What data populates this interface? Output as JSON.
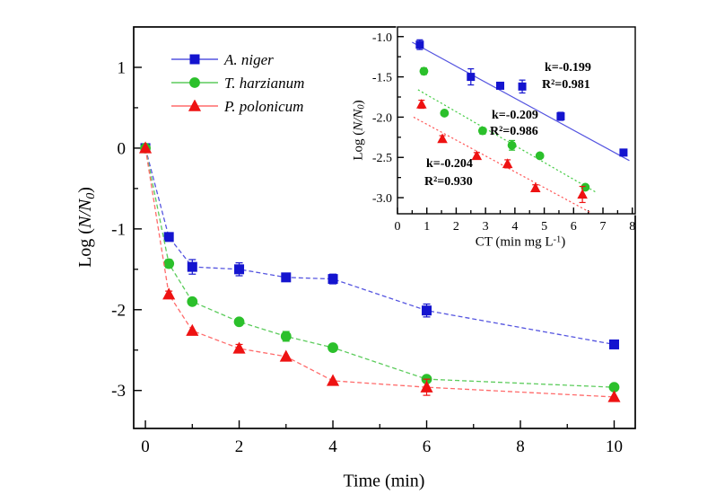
{
  "page": {
    "background": "#ffffff"
  },
  "labels": {
    "main_ylabel": {
      "pre": "Log (",
      "var": "N/N",
      "sub": "0",
      "post": ")"
    },
    "main_xlabel": "Time (min)",
    "inset_ylabel": {
      "pre": "Log (",
      "var": "N/N",
      "sub": "0",
      "post": ")"
    },
    "inset_xlabel": {
      "pre": "CT (min mg L",
      "sup": "-1",
      "post": ")"
    }
  },
  "chart_data": [
    {
      "type": "line",
      "title": "",
      "xlabel": "Time (min)",
      "ylabel": "Log (N/N0)",
      "xlim": [
        -0.25,
        10.45
      ],
      "ylim": [
        -3.47,
        1.5
      ],
      "grid": false,
      "legend_position": "top-left-inside",
      "x_tick_values": [
        0,
        2,
        4,
        6,
        8,
        10
      ],
      "x_tick_labels": [
        "0",
        "2",
        "4",
        "6",
        "8",
        "10"
      ],
      "x_minor_ticks": [
        1,
        3,
        5,
        7,
        9
      ],
      "y_tick_values": [
        1,
        0,
        -1,
        -2,
        -3
      ],
      "y_tick_labels": [
        "1",
        "0",
        "-1",
        "-2",
        "-3"
      ],
      "y_minor_ticks": [
        0.5,
        -0.5,
        -1.5,
        -2.5
      ],
      "series": [
        {
          "name": "A. niger",
          "marker": "square",
          "color": "#1414cf",
          "line_color": "#5555e0",
          "line_style": "dashed",
          "x": [
            0,
            0.5,
            1,
            2,
            3,
            4,
            6,
            10
          ],
          "y": [
            0,
            -1.1,
            -1.47,
            -1.5,
            -1.6,
            -1.62,
            -2.01,
            -2.43
          ],
          "yerr": [
            0,
            0.05,
            0.09,
            0.08,
            0,
            0.06,
            0.08,
            0
          ]
        },
        {
          "name": "T. harzianum",
          "marker": "circle",
          "color": "#2bc02b",
          "line_color": "#5ccc5c",
          "line_style": "dashed",
          "x": [
            0,
            0.5,
            1,
            2,
            3,
            4,
            6,
            10
          ],
          "y": [
            0,
            -1.43,
            -1.9,
            -2.15,
            -2.33,
            -2.47,
            -2.86,
            -2.96
          ],
          "yerr": [
            0,
            0.05,
            0.04,
            0,
            0.06,
            0,
            0.04,
            0
          ]
        },
        {
          "name": "P. polonicum",
          "marker": "triangle",
          "color": "#ee1212",
          "line_color": "#ff6b6b",
          "line_style": "dashed",
          "x": [
            0,
            0.5,
            1,
            2,
            3,
            4,
            6,
            10
          ],
          "y": [
            0,
            -1.81,
            -2.26,
            -2.48,
            -2.58,
            -2.88,
            -2.96,
            -3.08
          ],
          "yerr": [
            0,
            0.04,
            0,
            0.05,
            0,
            0,
            0.1,
            0
          ]
        }
      ]
    },
    {
      "type": "scatter",
      "title": "",
      "xlabel": "CT (min mg L-1)",
      "ylabel": "Log (N/N0)",
      "xlim": [
        0,
        8.1
      ],
      "ylim": [
        -3.2,
        -0.88
      ],
      "grid": false,
      "x_tick_values": [
        0,
        1,
        2,
        3,
        4,
        5,
        6,
        7,
        8
      ],
      "x_tick_labels": [
        "0",
        "1",
        "2",
        "3",
        "4",
        "5",
        "6",
        "7",
        "8"
      ],
      "x_minor_ticks": [
        0.5,
        1.5,
        2.5,
        3.5,
        4.5,
        5.5,
        6.5,
        7.5
      ],
      "y_tick_values": [
        -1.0,
        -1.5,
        -2.0,
        -2.5,
        -3.0
      ],
      "y_tick_labels": [
        "-1.0",
        "-1.5",
        "-2.0",
        "-2.5",
        "-3.0"
      ],
      "y_minor_ticks": [
        -1.25,
        -1.75,
        -2.25,
        -2.75
      ],
      "series": [
        {
          "name": "A. niger",
          "marker": "square",
          "color": "#1414cf",
          "x": [
            0.76,
            2.5,
            3.5,
            4.25,
            5.56,
            7.7
          ],
          "y": [
            -1.1,
            -1.5,
            -1.61,
            -1.62,
            -1.99,
            -2.44
          ],
          "yerr": [
            0.06,
            0.1,
            0.03,
            0.08,
            0.05,
            0.03
          ],
          "fit": {
            "x1": 0.5,
            "y1": -1.07,
            "x2": 7.9,
            "y2": -2.54,
            "style": "solid",
            "color": "#5555e0",
            "k_text": "k=-0.199",
            "r2_text": "R²=0.981"
          }
        },
        {
          "name": "T. harzianum",
          "marker": "circle",
          "color": "#2bc02b",
          "x": [
            0.9,
            1.6,
            2.9,
            3.9,
            4.85,
            6.4
          ],
          "y": [
            -1.43,
            -1.95,
            -2.17,
            -2.35,
            -2.48,
            -2.87
          ],
          "yerr": [
            0.04,
            0.03,
            0.04,
            0.06,
            0.03,
            0.03
          ],
          "fit": {
            "x1": 0.7,
            "y1": -1.66,
            "x2": 6.75,
            "y2": -2.93,
            "style": "dotted",
            "color": "#44cc44",
            "k_text": "k=-0.209",
            "r2_text": "R²=0.986"
          }
        },
        {
          "name": "P. polonicum",
          "marker": "triangle",
          "color": "#ee1212",
          "x": [
            0.82,
            1.53,
            2.7,
            3.75,
            4.7,
            6.3
          ],
          "y": [
            -1.84,
            -2.27,
            -2.48,
            -2.58,
            -2.88,
            -2.96
          ],
          "yerr": [
            0.05,
            0.04,
            0.04,
            0.05,
            0.04,
            0.1
          ],
          "fit": {
            "x1": 0.55,
            "y1": -2.0,
            "x2": 6.55,
            "y2": -3.18,
            "style": "dotted",
            "color": "#ff5555",
            "k_text": "k=-0.204",
            "r2_text": "R²=0.930"
          }
        }
      ]
    }
  ]
}
